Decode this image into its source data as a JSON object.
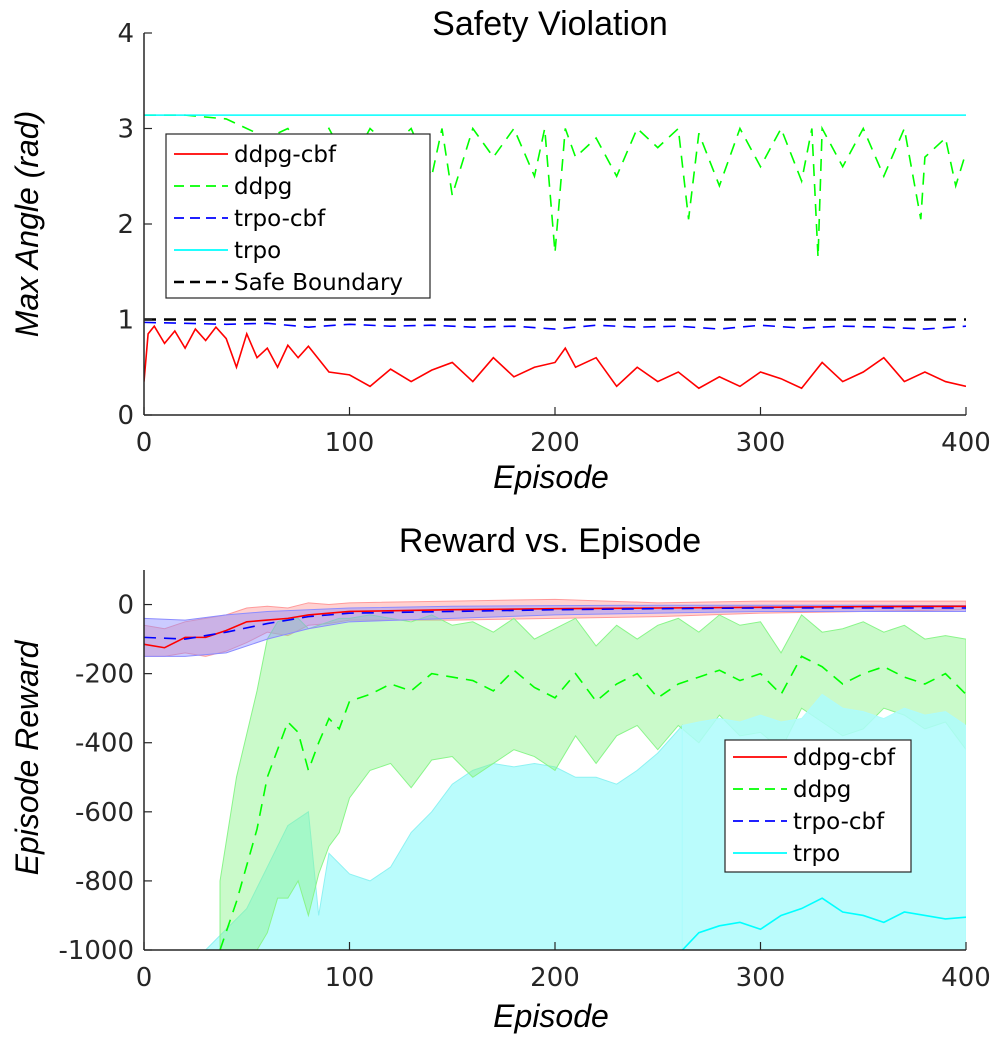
{
  "chart_data": [
    {
      "type": "line",
      "title": "Safety Violation",
      "xlabel": "Episode",
      "ylabel": "Max Angle (rad)",
      "xlim": [
        0,
        400
      ],
      "ylim": [
        0,
        4
      ],
      "xticks": [
        "0",
        "100",
        "200",
        "300",
        "400"
      ],
      "yticks": [
        "0",
        "1",
        "2",
        "3",
        "4"
      ],
      "legend_position": "top-left",
      "series": [
        {
          "name": "ddpg-cbf",
          "color": "#ff0000",
          "dash": "solid",
          "x": [
            0,
            2,
            5,
            10,
            15,
            20,
            25,
            30,
            35,
            40,
            45,
            50,
            55,
            60,
            65,
            70,
            75,
            80,
            90,
            100,
            110,
            120,
            130,
            140,
            150,
            160,
            170,
            180,
            190,
            200,
            205,
            210,
            220,
            230,
            240,
            250,
            260,
            270,
            280,
            290,
            300,
            310,
            320,
            330,
            340,
            350,
            360,
            370,
            380,
            390,
            400
          ],
          "y": [
            0.35,
            0.85,
            0.93,
            0.75,
            0.88,
            0.7,
            0.9,
            0.78,
            0.92,
            0.8,
            0.5,
            0.85,
            0.6,
            0.7,
            0.5,
            0.73,
            0.6,
            0.72,
            0.45,
            0.42,
            0.3,
            0.48,
            0.35,
            0.47,
            0.55,
            0.35,
            0.6,
            0.4,
            0.5,
            0.55,
            0.7,
            0.5,
            0.6,
            0.3,
            0.5,
            0.35,
            0.45,
            0.28,
            0.4,
            0.3,
            0.45,
            0.38,
            0.28,
            0.55,
            0.35,
            0.45,
            0.6,
            0.35,
            0.45,
            0.35,
            0.3
          ]
        },
        {
          "name": "ddpg",
          "color": "#00ff00",
          "dash": "dashed",
          "x": [
            0,
            20,
            40,
            60,
            70,
            80,
            90,
            100,
            110,
            120,
            130,
            140,
            145,
            150,
            160,
            170,
            180,
            190,
            195,
            200,
            205,
            210,
            220,
            230,
            240,
            250,
            260,
            265,
            270,
            280,
            290,
            300,
            310,
            320,
            325,
            328,
            330,
            340,
            350,
            360,
            370,
            378,
            380,
            390,
            395,
            400
          ],
          "y": [
            3.14,
            3.14,
            3.1,
            2.9,
            3.0,
            2.7,
            3.0,
            2.6,
            3.0,
            2.8,
            3.0,
            2.5,
            3.0,
            2.3,
            3.0,
            2.7,
            3.0,
            2.5,
            3.0,
            1.7,
            3.0,
            2.7,
            2.9,
            2.5,
            3.0,
            2.8,
            3.0,
            2.05,
            2.95,
            2.4,
            3.0,
            2.6,
            3.0,
            2.45,
            3.0,
            1.65,
            3.0,
            2.6,
            3.0,
            2.5,
            3.0,
            2.05,
            2.7,
            2.9,
            2.4,
            2.75
          ]
        },
        {
          "name": "trpo-cbf",
          "color": "#0000ff",
          "dash": "dashed",
          "x": [
            0,
            20,
            40,
            60,
            80,
            100,
            120,
            140,
            160,
            180,
            200,
            220,
            240,
            260,
            280,
            300,
            320,
            340,
            360,
            380,
            400
          ],
          "y": [
            0.97,
            0.96,
            0.95,
            0.96,
            0.92,
            0.95,
            0.93,
            0.94,
            0.92,
            0.93,
            0.9,
            0.94,
            0.92,
            0.93,
            0.9,
            0.94,
            0.91,
            0.93,
            0.92,
            0.9,
            0.93
          ]
        },
        {
          "name": "trpo",
          "color": "#00ffff",
          "dash": "solid",
          "x": [
            0,
            400
          ],
          "y": [
            3.14,
            3.14
          ]
        },
        {
          "name": "Safe Boundary",
          "color": "#000000",
          "dash": "dashed",
          "x": [
            0,
            400
          ],
          "y": [
            1.0,
            1.0
          ]
        }
      ]
    },
    {
      "type": "line",
      "title": "Reward vs. Episode",
      "xlabel": "Episode",
      "ylabel": "Episode Reward",
      "xlim": [
        0,
        400
      ],
      "ylim": [
        -1000,
        100
      ],
      "xticks": [
        "0",
        "100",
        "200",
        "300",
        "400"
      ],
      "yticks": [
        "0",
        "-200",
        "-400",
        "-600",
        "-800",
        "-1000"
      ],
      "legend_position": "bottom-right",
      "series": [
        {
          "name": "ddpg-cbf",
          "color": "#ff0000",
          "fill": "#ff9a9a",
          "dash": "solid",
          "x": [
            0,
            10,
            20,
            30,
            40,
            50,
            60,
            70,
            80,
            90,
            100,
            150,
            200,
            250,
            300,
            350,
            400
          ],
          "y": [
            -115,
            -125,
            -95,
            -95,
            -75,
            -50,
            -45,
            -40,
            -30,
            -25,
            -20,
            -15,
            -12,
            -10,
            -8,
            -6,
            -5
          ],
          "upper": [
            -60,
            -70,
            -50,
            -40,
            -30,
            -10,
            -5,
            -10,
            5,
            0,
            5,
            10,
            15,
            5,
            10,
            10,
            10
          ],
          "lower": [
            -150,
            -150,
            -140,
            -150,
            -135,
            -110,
            -80,
            -90,
            -60,
            -55,
            -45,
            -45,
            -40,
            -35,
            -25,
            -20,
            -15
          ]
        },
        {
          "name": "ddpg",
          "color": "#00ff00",
          "fill": "#8af58a",
          "dash": "dashed",
          "x": [
            37,
            45,
            55,
            60,
            65,
            70,
            75,
            80,
            85,
            90,
            95,
            100,
            110,
            120,
            130,
            140,
            150,
            160,
            170,
            180,
            190,
            200,
            210,
            220,
            230,
            240,
            250,
            260,
            270,
            280,
            290,
            300,
            310,
            320,
            330,
            340,
            350,
            360,
            370,
            380,
            390,
            400
          ],
          "y": [
            -1000,
            -860,
            -650,
            -500,
            -420,
            -340,
            -370,
            -480,
            -400,
            -330,
            -360,
            -280,
            -260,
            -230,
            -250,
            -200,
            -210,
            -220,
            -250,
            -190,
            -240,
            -270,
            -200,
            -280,
            -230,
            -200,
            -270,
            -230,
            -210,
            -190,
            -220,
            -200,
            -260,
            -150,
            -180,
            -230,
            -200,
            -180,
            -210,
            -230,
            -200,
            -260
          ],
          "upper": [
            -800,
            -500,
            -250,
            -100,
            -50,
            -40,
            -40,
            -70,
            -60,
            -50,
            -40,
            -40,
            -30,
            -40,
            -50,
            -30,
            -60,
            -50,
            -80,
            -40,
            -100,
            -70,
            -40,
            -120,
            -60,
            -100,
            -60,
            -40,
            -80,
            -30,
            -60,
            -50,
            -140,
            -30,
            -80,
            -70,
            -50,
            -80,
            -60,
            -100,
            -90,
            -100
          ],
          "lower": [
            -1000,
            -1000,
            -1000,
            -950,
            -850,
            -850,
            -800,
            -900,
            -780,
            -700,
            -660,
            -560,
            -480,
            -460,
            -530,
            -450,
            -440,
            -500,
            -460,
            -420,
            -440,
            -480,
            -380,
            -460,
            -380,
            -350,
            -420,
            -350,
            -400,
            -320,
            -380,
            -370,
            -420,
            -300,
            -340,
            -380,
            -360,
            -300,
            -320,
            -360,
            -340,
            -420
          ]
        },
        {
          "name": "trpo-cbf",
          "color": "#0000ff",
          "fill": "#8c8cff",
          "dash": "dashed",
          "x": [
            0,
            20,
            40,
            60,
            80,
            100,
            150,
            200,
            250,
            300,
            350,
            400
          ],
          "y": [
            -95,
            -100,
            -80,
            -55,
            -35,
            -25,
            -20,
            -15,
            -12,
            -10,
            -10,
            -10
          ],
          "upper": [
            -40,
            -45,
            -30,
            -20,
            -15,
            -10,
            -5,
            -3,
            -2,
            -2,
            -2,
            -3
          ],
          "lower": [
            -150,
            -150,
            -140,
            -100,
            -70,
            -50,
            -40,
            -30,
            -25,
            -20,
            -20,
            -20
          ]
        },
        {
          "name": "trpo",
          "color": "#00ffff",
          "fill": "#aefcfc",
          "dash": "solid",
          "x": [
            262,
            270,
            280,
            290,
            300,
            310,
            320,
            330,
            340,
            350,
            360,
            370,
            380,
            390,
            400
          ],
          "y": [
            -1000,
            -950,
            -930,
            -920,
            -940,
            -900,
            -880,
            -850,
            -890,
            -900,
            -920,
            -890,
            -900,
            -910,
            -905
          ],
          "upper": [
            -350,
            -340,
            -330,
            -340,
            -320,
            -340,
            -330,
            -260,
            -300,
            -310,
            -330,
            -300,
            -320,
            -310,
            -350
          ],
          "lower": [
            -1000,
            -1000,
            -1000,
            -1000,
            -1000,
            -1000,
            -1000,
            -1000,
            -1000,
            -1000,
            -1000,
            -1000,
            -1000,
            -1000,
            -1000
          ]
        }
      ],
      "trpo_band_early": {
        "x": [
          30,
          40,
          50,
          60,
          70,
          80,
          85,
          90,
          100,
          110,
          120,
          130,
          140,
          150,
          160,
          170,
          180,
          190,
          200,
          210,
          220,
          230,
          240,
          250,
          262
        ],
        "upper": [
          -1000,
          -940,
          -880,
          -760,
          -640,
          -600,
          -900,
          -720,
          -780,
          -800,
          -760,
          -660,
          -600,
          -520,
          -480,
          -460,
          -470,
          -460,
          -470,
          -500,
          -500,
          -520,
          -480,
          -430,
          -350
        ]
      }
    }
  ]
}
